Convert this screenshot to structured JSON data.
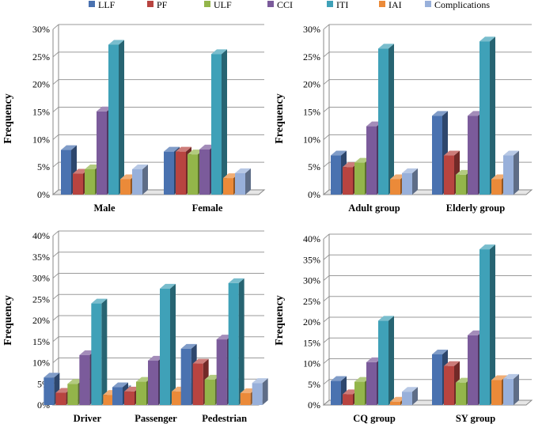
{
  "legend": [
    {
      "name": "LLF",
      "color": "#4A72B0"
    },
    {
      "name": "PF",
      "color": "#B84440"
    },
    {
      "name": "ULF",
      "color": "#93B54A"
    },
    {
      "name": "CCI",
      "color": "#7B5B9B"
    },
    {
      "name": "ITI",
      "color": "#3FA1B8"
    },
    {
      "name": "IAI",
      "color": "#EB8A39"
    },
    {
      "name": "Complications",
      "color": "#98B0DA"
    }
  ],
  "chart_data": [
    {
      "type": "bar",
      "ylabel": "Frequency",
      "ylim": [
        0,
        30
      ],
      "yticks": [
        "0%",
        "5%",
        "10%",
        "15%",
        "20%",
        "25%",
        "30%"
      ],
      "categories": [
        "Male",
        "Female"
      ],
      "series": [
        {
          "name": "LLF",
          "values": [
            8.1,
            7.8
          ]
        },
        {
          "name": "PF",
          "values": [
            3.8,
            7.8
          ]
        },
        {
          "name": "ULF",
          "values": [
            4.6,
            7.3
          ]
        },
        {
          "name": "CCI",
          "values": [
            15.1,
            8.2
          ]
        },
        {
          "name": "ITI",
          "values": [
            27.2,
            25.5
          ]
        },
        {
          "name": "IAI",
          "values": [
            2.8,
            3.0
          ]
        },
        {
          "name": "Complications",
          "values": [
            4.6,
            3.9
          ]
        }
      ]
    },
    {
      "type": "bar",
      "ylabel": "Frequency",
      "ylim": [
        0,
        30
      ],
      "yticks": [
        "0%",
        "5%",
        "10%",
        "15%",
        "20%",
        "25%",
        "30%"
      ],
      "categories": [
        "Adult group",
        "Elderly group"
      ],
      "series": [
        {
          "name": "LLF",
          "values": [
            7.1,
            14.3
          ]
        },
        {
          "name": "PF",
          "values": [
            5.0,
            7.1
          ]
        },
        {
          "name": "ULF",
          "values": [
            5.8,
            3.6
          ]
        },
        {
          "name": "CCI",
          "values": [
            12.4,
            14.3
          ]
        },
        {
          "name": "ITI",
          "values": [
            26.5,
            27.8
          ]
        },
        {
          "name": "IAI",
          "values": [
            2.8,
            2.8
          ]
        },
        {
          "name": "Complications",
          "values": [
            3.9,
            7.1
          ]
        }
      ]
    },
    {
      "type": "bar",
      "ylabel": "Frequency",
      "ylim": [
        0,
        40
      ],
      "yticks": [
        "0%",
        "5%",
        "10%",
        "15%",
        "20%",
        "25%",
        "30%",
        "35%",
        "40%"
      ],
      "categories": [
        "Driver",
        "Passenger",
        "Pedestrian"
      ],
      "series": [
        {
          "name": "LLF",
          "values": [
            6.5,
            4.2,
            13.3
          ]
        },
        {
          "name": "PF",
          "values": [
            2.9,
            3.2,
            9.8
          ]
        },
        {
          "name": "ULF",
          "values": [
            5.0,
            5.5,
            6.0
          ]
        },
        {
          "name": "CCI",
          "values": [
            11.8,
            10.5,
            15.5
          ]
        },
        {
          "name": "ITI",
          "values": [
            24.0,
            27.5,
            28.8
          ]
        },
        {
          "name": "IAI",
          "values": [
            2.4,
            3.2,
            2.8
          ]
        },
        {
          "name": "Complications",
          "values": [
            3.6,
            4.1,
            5.2
          ]
        }
      ]
    },
    {
      "type": "bar",
      "ylabel": "Frequency",
      "ylim": [
        0,
        40
      ],
      "yticks": [
        "0%",
        "5%",
        "10%",
        "15%",
        "20%",
        "25%",
        "30%",
        "35%",
        "40%"
      ],
      "categories": [
        "CQ group",
        "SY group"
      ],
      "series": [
        {
          "name": "LLF",
          "values": [
            5.8,
            12.2
          ]
        },
        {
          "name": "PF",
          "values": [
            2.6,
            9.4
          ]
        },
        {
          "name": "ULF",
          "values": [
            5.6,
            5.4
          ]
        },
        {
          "name": "CCI",
          "values": [
            10.3,
            16.8
          ]
        },
        {
          "name": "ITI",
          "values": [
            20.3,
            37.5
          ]
        },
        {
          "name": "IAI",
          "values": [
            0.8,
            6.0
          ]
        },
        {
          "name": "Complications",
          "values": [
            3.2,
            6.3
          ]
        }
      ]
    }
  ]
}
